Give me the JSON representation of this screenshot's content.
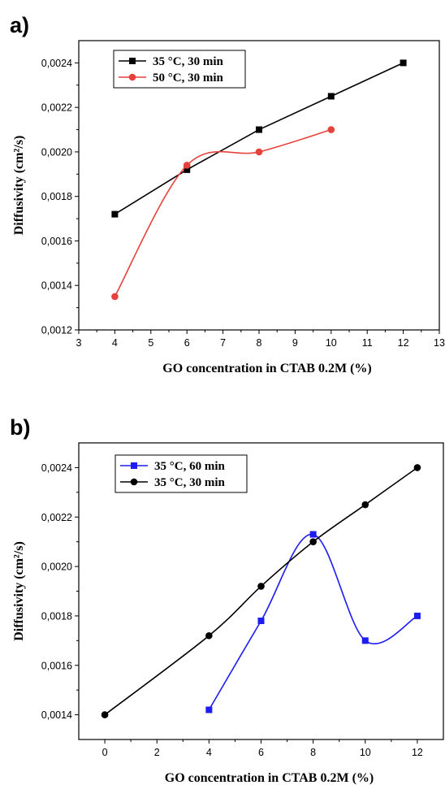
{
  "chart_data": [
    {
      "panel_label": "a)",
      "type": "line",
      "xlabel": "GO concentration in CTAB 0.2M (%)",
      "ylabel": "Diffusivity (cm²/s)",
      "xlim": [
        3,
        13
      ],
      "ylim": [
        0.0012,
        0.0025
      ],
      "xticks": [
        3,
        4,
        5,
        6,
        7,
        8,
        9,
        10,
        11,
        12,
        13
      ],
      "yticks": [
        0.0012,
        0.0014,
        0.0016,
        0.0018,
        0.002,
        0.0022,
        0.0024
      ],
      "ytick_labels": [
        "0,0012",
        "0,0014",
        "0,0016",
        "0,0018",
        "0,0020",
        "0,0022",
        "0,0024"
      ],
      "legend_position": "top-left",
      "series": [
        {
          "name": "35 °C, 30 min",
          "color": "#000000",
          "marker": "square",
          "smooth": false,
          "x": [
            4,
            6,
            8,
            10,
            12
          ],
          "y": [
            0.00172,
            0.00192,
            0.0021,
            0.00225,
            0.0024
          ]
        },
        {
          "name": "50 °C, 30 min",
          "color": "#e8413c",
          "marker": "circle",
          "smooth": true,
          "x": [
            4,
            6,
            8,
            10
          ],
          "y": [
            0.00135,
            0.00194,
            0.002,
            0.0021
          ]
        }
      ]
    },
    {
      "panel_label": "b)",
      "type": "line",
      "xlabel": "GO concentration in CTAB 0.2M (%)",
      "ylabel": "Diffusivity (cm²/s)",
      "xlim": [
        -1,
        13
      ],
      "ylim": [
        0.0013,
        0.0025
      ],
      "xticks": [
        0,
        2,
        4,
        6,
        8,
        10,
        12
      ],
      "yticks": [
        0.0014,
        0.0016,
        0.0018,
        0.002,
        0.0022,
        0.0024
      ],
      "ytick_labels": [
        "0,0014",
        "0,0016",
        "0,0018",
        "0,0020",
        "0,0022",
        "0,0024"
      ],
      "legend_position": "top-left",
      "series": [
        {
          "name": "35 °C, 60 min",
          "color": "#1d1df2",
          "marker": "square",
          "smooth": true,
          "x": [
            4,
            6,
            8,
            10,
            12
          ],
          "y": [
            0.00142,
            0.00178,
            0.00213,
            0.0017,
            0.0018
          ]
        },
        {
          "name": "35 °C, 30 min",
          "color": "#000000",
          "marker": "circle",
          "smooth": true,
          "x": [
            0,
            4,
            6,
            8,
            10,
            12
          ],
          "y": [
            0.0014,
            0.00172,
            0.00192,
            0.0021,
            0.00225,
            0.0024
          ]
        }
      ]
    }
  ]
}
